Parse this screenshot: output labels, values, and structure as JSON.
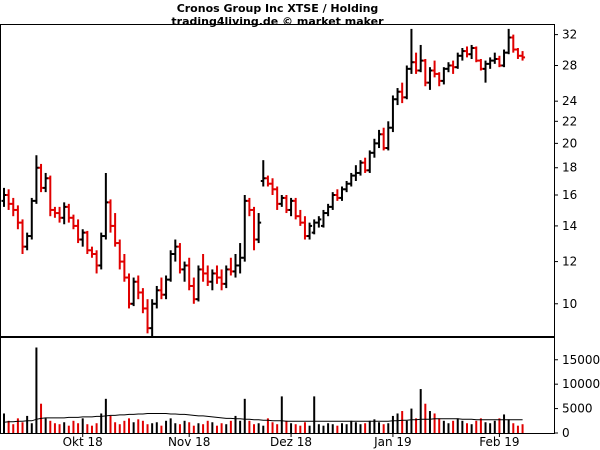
{
  "chart_data": {
    "type": "bar",
    "title": "Cronos Group Inc XTSE / Holding",
    "subtitle": "trading4living.de © market maker",
    "colors": {
      "up": "#000000",
      "down": "#e00000",
      "avg": "#000000",
      "frame": "#000000"
    },
    "price_axis": {
      "scale": "log",
      "ylim": [
        8.7,
        33.5
      ],
      "ticks": [
        10,
        12,
        14,
        16,
        18,
        20,
        22,
        24,
        28,
        32
      ]
    },
    "volume_axis": {
      "ylim": [
        0,
        17000
      ],
      "ticks": [
        0,
        5000,
        10000,
        15000
      ]
    },
    "x_labels": [
      {
        "label": "Okt 18",
        "index": 17
      },
      {
        "label": "Nov 18",
        "index": 40
      },
      {
        "label": "Dez 18",
        "index": 62
      },
      {
        "label": "Jan 19",
        "index": 84
      },
      {
        "label": "Feb 19",
        "index": 107
      }
    ],
    "series": [
      {
        "kind": "ohlc",
        "values": [
          [
            15.6,
            16.5,
            15.2,
            16.0
          ],
          [
            16.0,
            16.4,
            15.0,
            15.4
          ],
          [
            15.4,
            15.8,
            14.6,
            15.0
          ],
          [
            15.0,
            15.3,
            13.8,
            14.2
          ],
          [
            14.2,
            14.4,
            12.4,
            12.8
          ],
          [
            12.8,
            13.6,
            12.6,
            13.4
          ],
          [
            13.4,
            15.8,
            13.2,
            15.6
          ],
          [
            15.6,
            19.0,
            15.4,
            18.0
          ],
          [
            18.0,
            18.3,
            16.2,
            16.5
          ],
          [
            16.5,
            17.6,
            16.2,
            17.2
          ],
          [
            17.2,
            17.4,
            14.6,
            15.0
          ],
          [
            15.0,
            15.2,
            14.5,
            14.8
          ],
          [
            14.8,
            15.2,
            14.2,
            14.5
          ],
          [
            14.5,
            15.5,
            14.1,
            15.2
          ],
          [
            15.2,
            15.4,
            14.2,
            14.5
          ],
          [
            14.5,
            14.7,
            13.8,
            14.0
          ],
          [
            14.0,
            14.4,
            13.0,
            13.2
          ],
          [
            13.2,
            13.8,
            12.8,
            13.6
          ],
          [
            13.6,
            13.7,
            12.4,
            12.6
          ],
          [
            12.6,
            12.8,
            12.2,
            12.4
          ],
          [
            12.4,
            12.6,
            11.4,
            11.8
          ],
          [
            11.8,
            13.6,
            11.6,
            13.4
          ],
          [
            13.4,
            17.6,
            13.2,
            15.5
          ],
          [
            15.5,
            15.7,
            13.6,
            14.0
          ],
          [
            14.0,
            14.8,
            12.8,
            13.0
          ],
          [
            13.0,
            13.2,
            11.6,
            12.0
          ],
          [
            12.0,
            12.4,
            11.0,
            11.2
          ],
          [
            11.2,
            11.4,
            9.8,
            10.0
          ],
          [
            10.0,
            11.2,
            9.9,
            11.0
          ],
          [
            11.0,
            11.3,
            10.2,
            10.5
          ],
          [
            10.5,
            10.7,
            9.6,
            9.8
          ],
          [
            9.8,
            10.2,
            8.8,
            9.0
          ],
          [
            9.0,
            10.2,
            8.7,
            10.0
          ],
          [
            10.0,
            10.8,
            9.8,
            10.6
          ],
          [
            10.6,
            11.2,
            10.2,
            10.4
          ],
          [
            10.4,
            11.3,
            10.2,
            11.1
          ],
          [
            11.1,
            12.6,
            11.0,
            12.4
          ],
          [
            12.4,
            13.2,
            12.0,
            12.8
          ],
          [
            12.8,
            13.0,
            11.4,
            11.6
          ],
          [
            11.6,
            12.0,
            11.0,
            11.8
          ],
          [
            11.8,
            12.2,
            10.6,
            10.8
          ],
          [
            10.8,
            11.2,
            10.0,
            10.2
          ],
          [
            10.2,
            11.8,
            10.1,
            11.6
          ],
          [
            11.6,
            12.4,
            11.0,
            11.4
          ],
          [
            11.4,
            11.8,
            10.8,
            11.0
          ],
          [
            11.0,
            11.6,
            10.6,
            11.4
          ],
          [
            11.4,
            11.8,
            10.9,
            11.2
          ],
          [
            11.2,
            11.6,
            10.6,
            10.9
          ],
          [
            10.9,
            11.8,
            10.7,
            11.6
          ],
          [
            11.6,
            12.2,
            11.3,
            11.5
          ],
          [
            11.5,
            12.4,
            11.2,
            11.8
          ],
          [
            11.8,
            13.0,
            11.4,
            12.2
          ],
          [
            12.2,
            16.0,
            12.0,
            15.6
          ],
          [
            15.6,
            15.8,
            14.6,
            15.0
          ],
          [
            15.0,
            15.2,
            12.6,
            13.2
          ],
          [
            13.2,
            14.8,
            13.0,
            14.2
          ],
          [
            17.0,
            18.6,
            16.6,
            17.2
          ],
          [
            17.2,
            17.4,
            16.6,
            16.8
          ],
          [
            16.8,
            17.2,
            16.0,
            16.4
          ],
          [
            16.4,
            16.6,
            15.0,
            15.4
          ],
          [
            15.4,
            16.0,
            15.2,
            15.8
          ],
          [
            15.8,
            16.0,
            14.8,
            15.0
          ],
          [
            15.0,
            15.8,
            14.6,
            15.6
          ],
          [
            15.6,
            15.8,
            14.4,
            14.6
          ],
          [
            14.6,
            15.0,
            14.0,
            14.2
          ],
          [
            14.2,
            14.6,
            13.2,
            13.4
          ],
          [
            13.4,
            14.2,
            13.2,
            14.0
          ],
          [
            13.6,
            14.4,
            13.5,
            14.2
          ],
          [
            14.2,
            14.6,
            13.9,
            14.4
          ],
          [
            14.0,
            15.0,
            13.9,
            14.8
          ],
          [
            14.8,
            15.4,
            14.6,
            15.2
          ],
          [
            15.2,
            16.2,
            15.0,
            16.0
          ],
          [
            16.0,
            16.4,
            15.6,
            15.8
          ],
          [
            15.8,
            16.6,
            15.6,
            16.4
          ],
          [
            16.4,
            17.0,
            16.2,
            16.8
          ],
          [
            16.8,
            17.6,
            16.6,
            17.4
          ],
          [
            17.4,
            18.2,
            17.0,
            17.6
          ],
          [
            17.6,
            18.6,
            17.4,
            18.4
          ],
          [
            18.4,
            18.8,
            17.6,
            17.8
          ],
          [
            17.8,
            19.4,
            17.6,
            19.2
          ],
          [
            19.2,
            20.4,
            18.8,
            20.0
          ],
          [
            20.0,
            21.2,
            19.6,
            20.8
          ],
          [
            20.8,
            21.4,
            19.4,
            19.6
          ],
          [
            19.6,
            22.0,
            19.4,
            21.4
          ],
          [
            21.4,
            24.6,
            21.0,
            24.2
          ],
          [
            24.2,
            25.4,
            23.6,
            25.0
          ],
          [
            25.0,
            26.0,
            23.8,
            24.4
          ],
          [
            24.4,
            28.0,
            24.2,
            27.6
          ],
          [
            27.6,
            32.8,
            27.0,
            28.4
          ],
          [
            28.4,
            29.6,
            27.0,
            27.4
          ],
          [
            27.4,
            30.6,
            27.2,
            28.6
          ],
          [
            28.6,
            28.8,
            25.6,
            26.0
          ],
          [
            26.0,
            27.8,
            25.2,
            27.4
          ],
          [
            27.4,
            28.6,
            26.6,
            27.0
          ],
          [
            27.0,
            27.2,
            25.6,
            26.2
          ],
          [
            26.2,
            27.8,
            25.8,
            27.6
          ],
          [
            27.6,
            28.4,
            27.2,
            28.0
          ],
          [
            28.0,
            28.6,
            27.0,
            27.8
          ],
          [
            27.8,
            29.6,
            27.6,
            29.2
          ],
          [
            29.2,
            30.2,
            28.6,
            29.8
          ],
          [
            29.8,
            30.4,
            29.0,
            29.4
          ],
          [
            29.4,
            30.6,
            28.8,
            30.2
          ],
          [
            30.2,
            30.4,
            28.4,
            28.6
          ],
          [
            28.6,
            28.8,
            27.4,
            27.6
          ],
          [
            27.6,
            28.6,
            26.0,
            28.2
          ],
          [
            28.2,
            29.0,
            27.6,
            28.6
          ],
          [
            28.6,
            29.6,
            28.2,
            28.8
          ],
          [
            28.8,
            29.2,
            27.8,
            28.0
          ],
          [
            28.0,
            30.0,
            27.8,
            29.6
          ],
          [
            29.6,
            32.8,
            29.4,
            31.6
          ],
          [
            31.6,
            32.0,
            29.6,
            30.0
          ],
          [
            30.0,
            30.2,
            28.8,
            29.2
          ],
          [
            29.2,
            29.8,
            28.6,
            29.0
          ]
        ]
      },
      {
        "kind": "volume",
        "values": [
          4000,
          2500,
          1800,
          3000,
          2200,
          3500,
          2000,
          17500,
          6000,
          3000,
          2500,
          2000,
          1800,
          2200,
          1500,
          2500,
          2000,
          3000,
          1800,
          1500,
          2000,
          4000,
          7000,
          3500,
          2200,
          1800,
          2500,
          3000,
          2200,
          2800,
          2500,
          1800,
          2000,
          2200,
          1500,
          2500,
          3000,
          2000,
          1800,
          2500,
          2200,
          1500,
          2000,
          1800,
          2500,
          2200,
          1500,
          2000,
          1800,
          2500,
          3500,
          2500,
          7000,
          2500,
          1800,
          2000,
          1500,
          3000,
          2200,
          1800,
          7500,
          2500,
          2000,
          1800,
          1500,
          2200,
          1500,
          7500,
          1800,
          1500,
          2000,
          1800,
          1500,
          2000,
          1800,
          2500,
          2200,
          1800,
          2000,
          2500,
          2800,
          2200,
          1800,
          2000,
          3500,
          4000,
          4500,
          2500,
          5000,
          3000,
          9000,
          6000,
          4500,
          4000,
          3000,
          2500,
          2000,
          2500,
          3000,
          2500,
          2000,
          1800,
          2500,
          3000,
          2200,
          2000,
          2500,
          3000,
          3800,
          2800,
          2000,
          1500,
          1800
        ]
      },
      {
        "kind": "volume_average",
        "values": [
          2200,
          2300,
          2300,
          2400,
          2400,
          2500,
          2500,
          2800,
          3000,
          3100,
          3100,
          3100,
          3100,
          3100,
          3200,
          3200,
          3200,
          3300,
          3300,
          3300,
          3400,
          3400,
          3500,
          3600,
          3600,
          3700,
          3700,
          3800,
          3800,
          3900,
          3900,
          4000,
          4000,
          4000,
          4000,
          4000,
          3900,
          3900,
          3800,
          3800,
          3700,
          3600,
          3500,
          3500,
          3400,
          3300,
          3200,
          3100,
          3000,
          3000,
          2900,
          2900,
          2800,
          2800,
          2700,
          2700,
          2600,
          2600,
          2500,
          2500,
          2500,
          2400,
          2400,
          2400,
          2400,
          2400,
          2400,
          2400,
          2400,
          2400,
          2400,
          2400,
          2400,
          2400,
          2400,
          2400,
          2400,
          2400,
          2400,
          2400,
          2400,
          2400,
          2400,
          2400,
          2500,
          2500,
          2600,
          2600,
          2700,
          2700,
          2800,
          2800,
          2800,
          2900,
          2900,
          2900,
          2900,
          2900,
          2900,
          2800,
          2800,
          2800,
          2700,
          2700,
          2700,
          2700,
          2700,
          2700,
          2700,
          2700,
          2700,
          2700,
          2700
        ]
      }
    ]
  }
}
